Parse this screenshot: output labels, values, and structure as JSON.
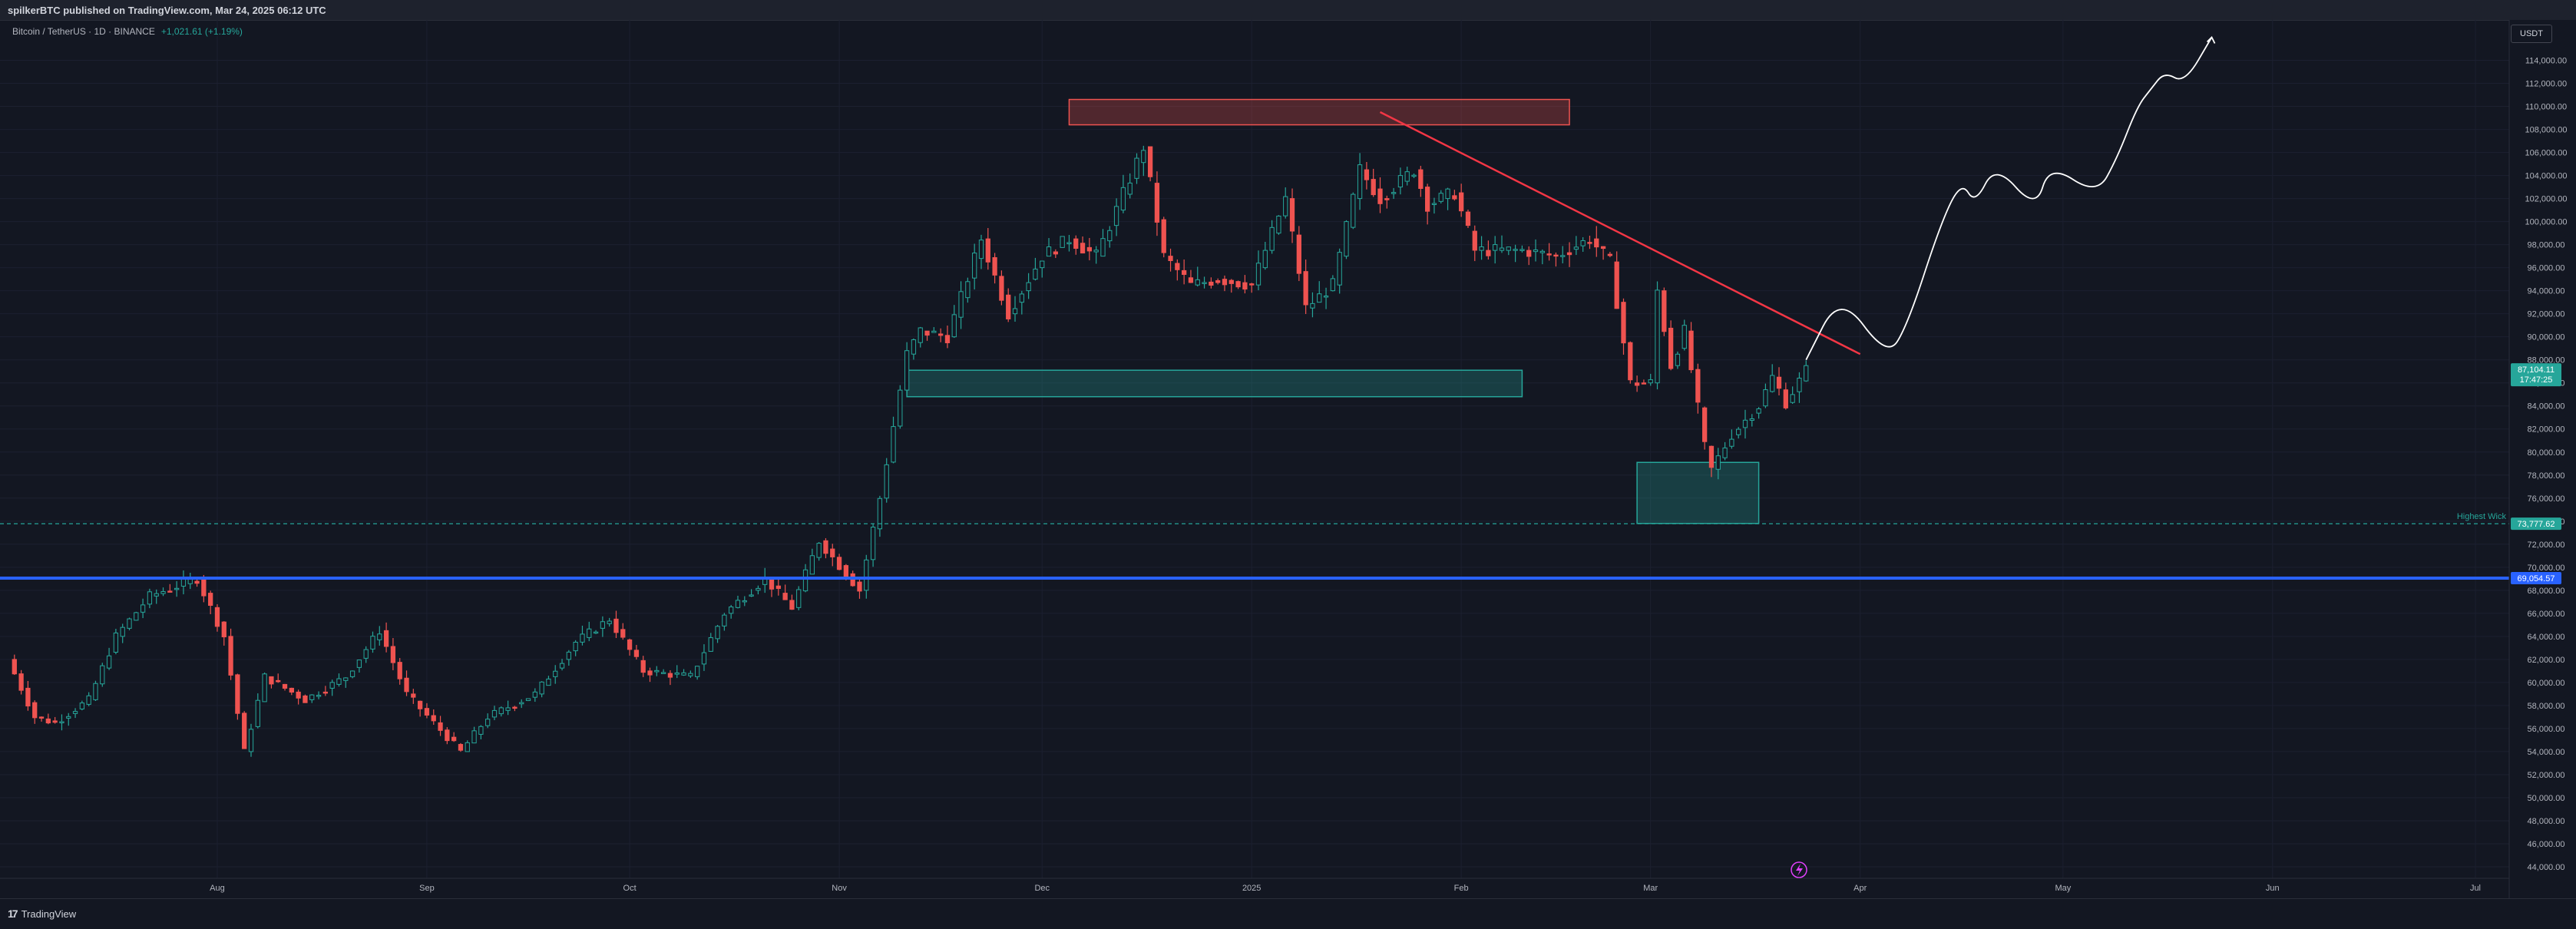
{
  "header": {
    "published": "spilkerBTC published on TradingView.com, Mar 24, 2025 06:12 UTC"
  },
  "legend": {
    "symbol": "Bitcoin / TetherUS · 1D · BINANCE",
    "change": "+1,021.61 (+1.19%)"
  },
  "currency_button": {
    "label": "USDT"
  },
  "footer": {
    "brand": "TradingView"
  },
  "colors": {
    "up": "#26a69a",
    "down": "#ef5350",
    "blue_line": "#2962ff",
    "trendline": "#f23645",
    "projection": "#ffffff",
    "background": "#131722"
  },
  "chart_data": {
    "type": "candlestick",
    "ylim": [
      43000,
      117500
    ],
    "xlim": [
      "2024-07-01",
      "2025-07-06"
    ],
    "yticks": [
      "114,000.00",
      "112,000.00",
      "110,000.00",
      "108,000.00",
      "106,000.00",
      "104,000.00",
      "102,000.00",
      "100,000.00",
      "98,000.00",
      "96,000.00",
      "94,000.00",
      "92,000.00",
      "90,000.00",
      "88,000.00",
      "86,000.00",
      "84,000.00",
      "82,000.00",
      "80,000.00",
      "78,000.00",
      "76,000.00",
      "74,000.00",
      "72,000.00",
      "70,000.00",
      "68,000.00",
      "66,000.00",
      "64,000.00",
      "62,000.00",
      "60,000.00",
      "58,000.00",
      "56,000.00",
      "54,000.00",
      "52,000.00",
      "50,000.00",
      "48,000.00",
      "46,000.00",
      "44,000.00"
    ],
    "xticks": [
      {
        "label": "Aug",
        "date": "2024-08-01"
      },
      {
        "label": "Sep",
        "date": "2024-09-01"
      },
      {
        "label": "Oct",
        "date": "2024-10-01"
      },
      {
        "label": "Nov",
        "date": "2024-11-01"
      },
      {
        "label": "Dec",
        "date": "2024-12-01"
      },
      {
        "label": "2025",
        "date": "2025-01-01"
      },
      {
        "label": "Feb",
        "date": "2025-02-01"
      },
      {
        "label": "Mar",
        "date": "2025-03-01"
      },
      {
        "label": "Apr",
        "date": "2025-04-01"
      },
      {
        "label": "May",
        "date": "2025-05-01"
      },
      {
        "label": "Jun",
        "date": "2025-06-01"
      },
      {
        "label": "Jul",
        "date": "2025-07-01"
      }
    ],
    "close_anchors": [
      [
        "2024-07-01",
        62000
      ],
      [
        "2024-07-05",
        57000
      ],
      [
        "2024-07-08",
        56500
      ],
      [
        "2024-07-13",
        58500
      ],
      [
        "2024-07-17",
        64000
      ],
      [
        "2024-07-22",
        67500
      ],
      [
        "2024-07-29",
        69000
      ],
      [
        "2024-08-02",
        64000
      ],
      [
        "2024-08-05",
        54000
      ],
      [
        "2024-08-08",
        60500
      ],
      [
        "2024-08-14",
        58500
      ],
      [
        "2024-08-20",
        60500
      ],
      [
        "2024-08-25",
        64500
      ],
      [
        "2024-08-29",
        59000
      ],
      [
        "2024-09-06",
        54000
      ],
      [
        "2024-09-10",
        57000
      ],
      [
        "2024-09-17",
        59000
      ],
      [
        "2024-09-23",
        63500
      ],
      [
        "2024-09-28",
        65500
      ],
      [
        "2024-10-03",
        61000
      ],
      [
        "2024-10-10",
        60500
      ],
      [
        "2024-10-15",
        66000
      ],
      [
        "2024-10-21",
        69000
      ],
      [
        "2024-10-25",
        66500
      ],
      [
        "2024-10-29",
        72300
      ],
      [
        "2024-11-04",
        68000
      ],
      [
        "2024-11-07",
        76000
      ],
      [
        "2024-11-11",
        88500
      ],
      [
        "2024-11-13",
        90500
      ],
      [
        "2024-11-17",
        90000
      ],
      [
        "2024-11-22",
        98500
      ],
      [
        "2024-11-26",
        92000
      ],
      [
        "2024-12-01",
        97000
      ],
      [
        "2024-12-05",
        98500
      ],
      [
        "2024-12-09",
        97000
      ],
      [
        "2024-12-12",
        101000
      ],
      [
        "2024-12-16",
        106500
      ],
      [
        "2024-12-19",
        97000
      ],
      [
        "2024-12-23",
        94500
      ],
      [
        "2024-12-27",
        95000
      ],
      [
        "2025-01-01",
        94500
      ],
      [
        "2025-01-06",
        102000
      ],
      [
        "2025-01-09",
        92500
      ],
      [
        "2025-01-13",
        94500
      ],
      [
        "2025-01-17",
        104500
      ],
      [
        "2025-01-20",
        102000
      ],
      [
        "2025-01-25",
        104500
      ],
      [
        "2025-01-27",
        101500
      ],
      [
        "2025-01-31",
        102500
      ],
      [
        "2025-02-03",
        97500
      ],
      [
        "2025-02-10",
        97500
      ],
      [
        "2025-02-15",
        97000
      ],
      [
        "2025-02-20",
        98500
      ],
      [
        "2025-02-23",
        96500
      ],
      [
        "2025-02-26",
        86000
      ],
      [
        "2025-03-01",
        86000
      ],
      [
        "2025-03-02",
        94000
      ],
      [
        "2025-03-04",
        87500
      ],
      [
        "2025-03-06",
        90500
      ],
      [
        "2025-03-09",
        80500
      ],
      [
        "2025-03-10",
        78500
      ],
      [
        "2025-03-13",
        81500
      ],
      [
        "2025-03-17",
        84000
      ],
      [
        "2025-03-19",
        86500
      ],
      [
        "2025-03-21",
        84300
      ],
      [
        "2025-03-24",
        87104
      ]
    ],
    "zones": [
      {
        "name": "supply-zone",
        "color": "#ef5350",
        "x0": "2024-12-05",
        "x1": "2025-02-17",
        "y0": 108400,
        "y1": 110600
      },
      {
        "name": "upper-demand-zone",
        "color": "#26a69a",
        "x0": "2024-11-11",
        "x1": "2025-02-10",
        "y0": 84800,
        "y1": 87100
      },
      {
        "name": "lower-demand-zone",
        "color": "#26a69a",
        "x0": "2025-02-27",
        "x1": "2025-03-17",
        "y0": 73800,
        "y1": 79100
      }
    ],
    "lines": [
      {
        "name": "blue-support-line",
        "y": 69054.57,
        "color": "#2962ff",
        "label": "69,054.57"
      },
      {
        "name": "highest-wick-line",
        "y": 73777.62,
        "color": "#26a69a",
        "label": "73,777.62",
        "caption": "Highest Wick"
      }
    ],
    "last_price": {
      "label": "87,104.11",
      "countdown": "17:47:25",
      "value": 87104.11
    },
    "trendline": {
      "from": [
        "2025-01-20",
        109500
      ],
      "to": [
        "2025-04-01",
        88500
      ],
      "color": "#f23645"
    },
    "projection": [
      [
        "2025-03-24",
        88000
      ],
      [
        "2025-03-29",
        93800
      ],
      [
        "2025-04-05",
        88200
      ],
      [
        "2025-04-08",
        91000
      ],
      [
        "2025-04-13",
        100000
      ],
      [
        "2025-04-16",
        103500
      ],
      [
        "2025-04-18",
        101500
      ],
      [
        "2025-04-21",
        105000
      ],
      [
        "2025-04-27",
        101000
      ],
      [
        "2025-04-29",
        105000
      ],
      [
        "2025-05-06",
        102300
      ],
      [
        "2025-05-09",
        105500
      ],
      [
        "2025-05-12",
        110000
      ],
      [
        "2025-05-14",
        111500
      ],
      [
        "2025-05-16",
        113000
      ],
      [
        "2025-05-19",
        112000
      ],
      [
        "2025-05-23",
        116000
      ]
    ]
  }
}
